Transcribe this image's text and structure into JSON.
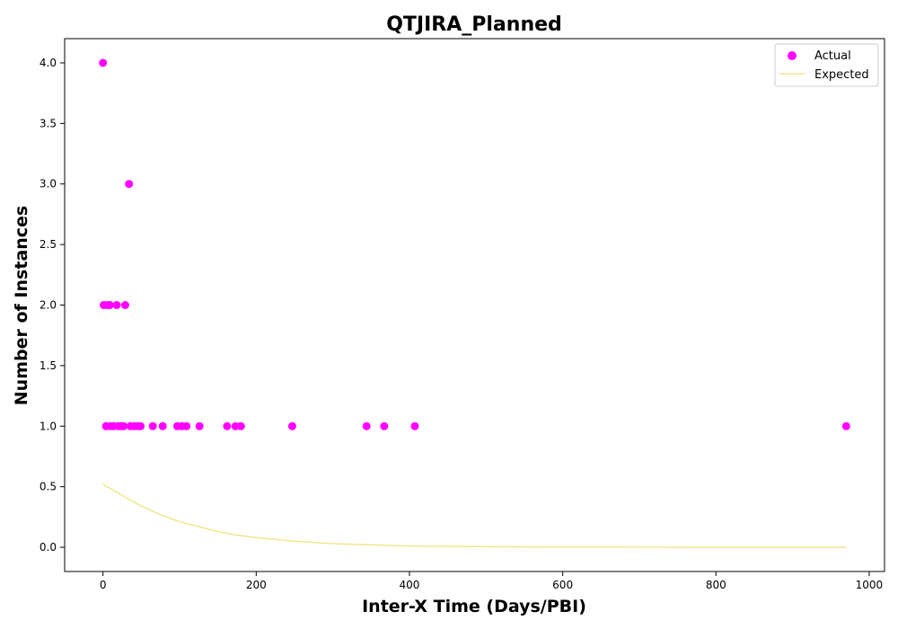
{
  "chart_data": {
    "type": "scatter",
    "title": "QTJIRA_Planned",
    "xlabel": "Inter-X Time (Days/PBI)",
    "ylabel": "Number of Instances",
    "xlim": [
      -50,
      1020
    ],
    "ylim": [
      -0.2,
      4.2
    ],
    "xticks": [
      0,
      200,
      400,
      600,
      800,
      1000
    ],
    "xtick_labels": [
      "0",
      "200",
      "400",
      "600",
      "800",
      "1000"
    ],
    "yticks": [
      0.0,
      0.5,
      1.0,
      1.5,
      2.0,
      2.5,
      3.0,
      3.5,
      4.0
    ],
    "ytick_labels": [
      "0.0",
      "0.5",
      "1.0",
      "1.5",
      "2.0",
      "2.5",
      "3.0",
      "3.5",
      "4.0"
    ],
    "grid": false,
    "legend_position": "top-right",
    "series": [
      {
        "name": "Actual",
        "kind": "scatter",
        "color": "#ff00ff",
        "x": [
          0,
          1,
          4,
          6,
          9,
          10,
          14,
          18,
          20,
          23,
          27,
          29,
          34,
          36,
          41,
          46,
          49,
          65,
          78,
          97,
          103,
          109,
          126,
          162,
          173,
          180,
          247,
          344,
          367,
          407,
          970
        ],
        "y": [
          4,
          2,
          1,
          2,
          2,
          1,
          1,
          2,
          1,
          1,
          1,
          2,
          3,
          1,
          1,
          1,
          1,
          1,
          1,
          1,
          1,
          1,
          1,
          1,
          1,
          1,
          1,
          1,
          1,
          1,
          1
        ]
      },
      {
        "name": "Expected",
        "kind": "line",
        "color": "#f0e68c",
        "x": [
          0,
          25,
          50,
          75,
          100,
          125,
          150,
          175,
          200,
          250,
          300,
          350,
          400,
          500,
          600,
          700,
          800,
          970
        ],
        "y": [
          0.52,
          0.43,
          0.34,
          0.27,
          0.21,
          0.17,
          0.13,
          0.1,
          0.08,
          0.05,
          0.03,
          0.02,
          0.01,
          0.005,
          0.002,
          0.001,
          0.0,
          0.0
        ]
      }
    ]
  }
}
